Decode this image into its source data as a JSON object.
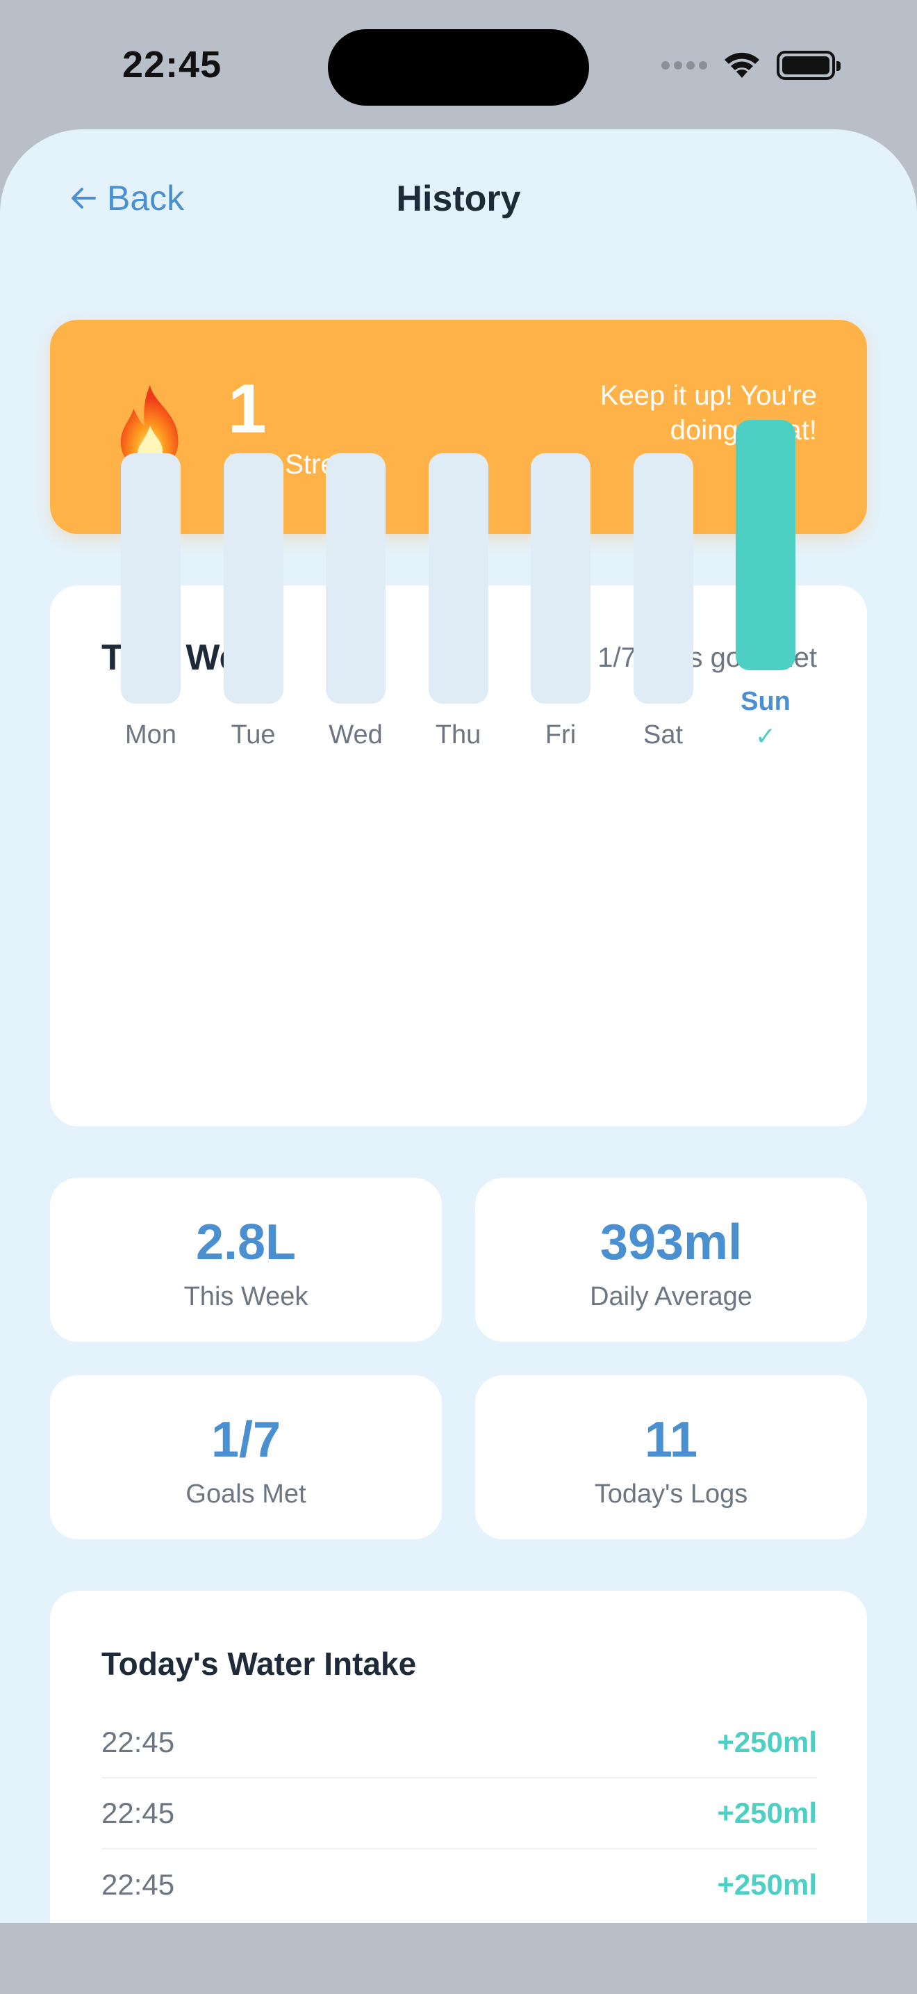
{
  "status": {
    "time": "22:45"
  },
  "nav": {
    "back_label": "Back",
    "title": "History"
  },
  "streak": {
    "count": "1",
    "label": "Day Streak",
    "message": "Keep it up! You're doing great!"
  },
  "week": {
    "title": "This Week",
    "summary": "1/7 days goal met",
    "days": [
      {
        "label": "Mon",
        "goal_met": false
      },
      {
        "label": "Tue",
        "goal_met": false
      },
      {
        "label": "Wed",
        "goal_met": false
      },
      {
        "label": "Thu",
        "goal_met": false
      },
      {
        "label": "Fri",
        "goal_met": false
      },
      {
        "label": "Sat",
        "goal_met": false
      },
      {
        "label": "Sun",
        "goal_met": true,
        "check": "✓"
      }
    ]
  },
  "stats": [
    {
      "value": "2.8L",
      "label": "This Week"
    },
    {
      "value": "393ml",
      "label": "Daily Average"
    },
    {
      "value": "1/7",
      "label": "Goals Met"
    },
    {
      "value": "11",
      "label": "Today's Logs"
    }
  ],
  "intake": {
    "title": "Today's Water Intake",
    "logs": [
      {
        "time": "22:45",
        "amount": "+250ml"
      },
      {
        "time": "22:45",
        "amount": "+250ml"
      },
      {
        "time": "22:45",
        "amount": "+250ml"
      }
    ]
  },
  "colors": {
    "accent_blue": "#4a8fd0",
    "teal": "#4ecfc3",
    "streak_orange": "#ffb248",
    "background": "#e4f2fc"
  }
}
